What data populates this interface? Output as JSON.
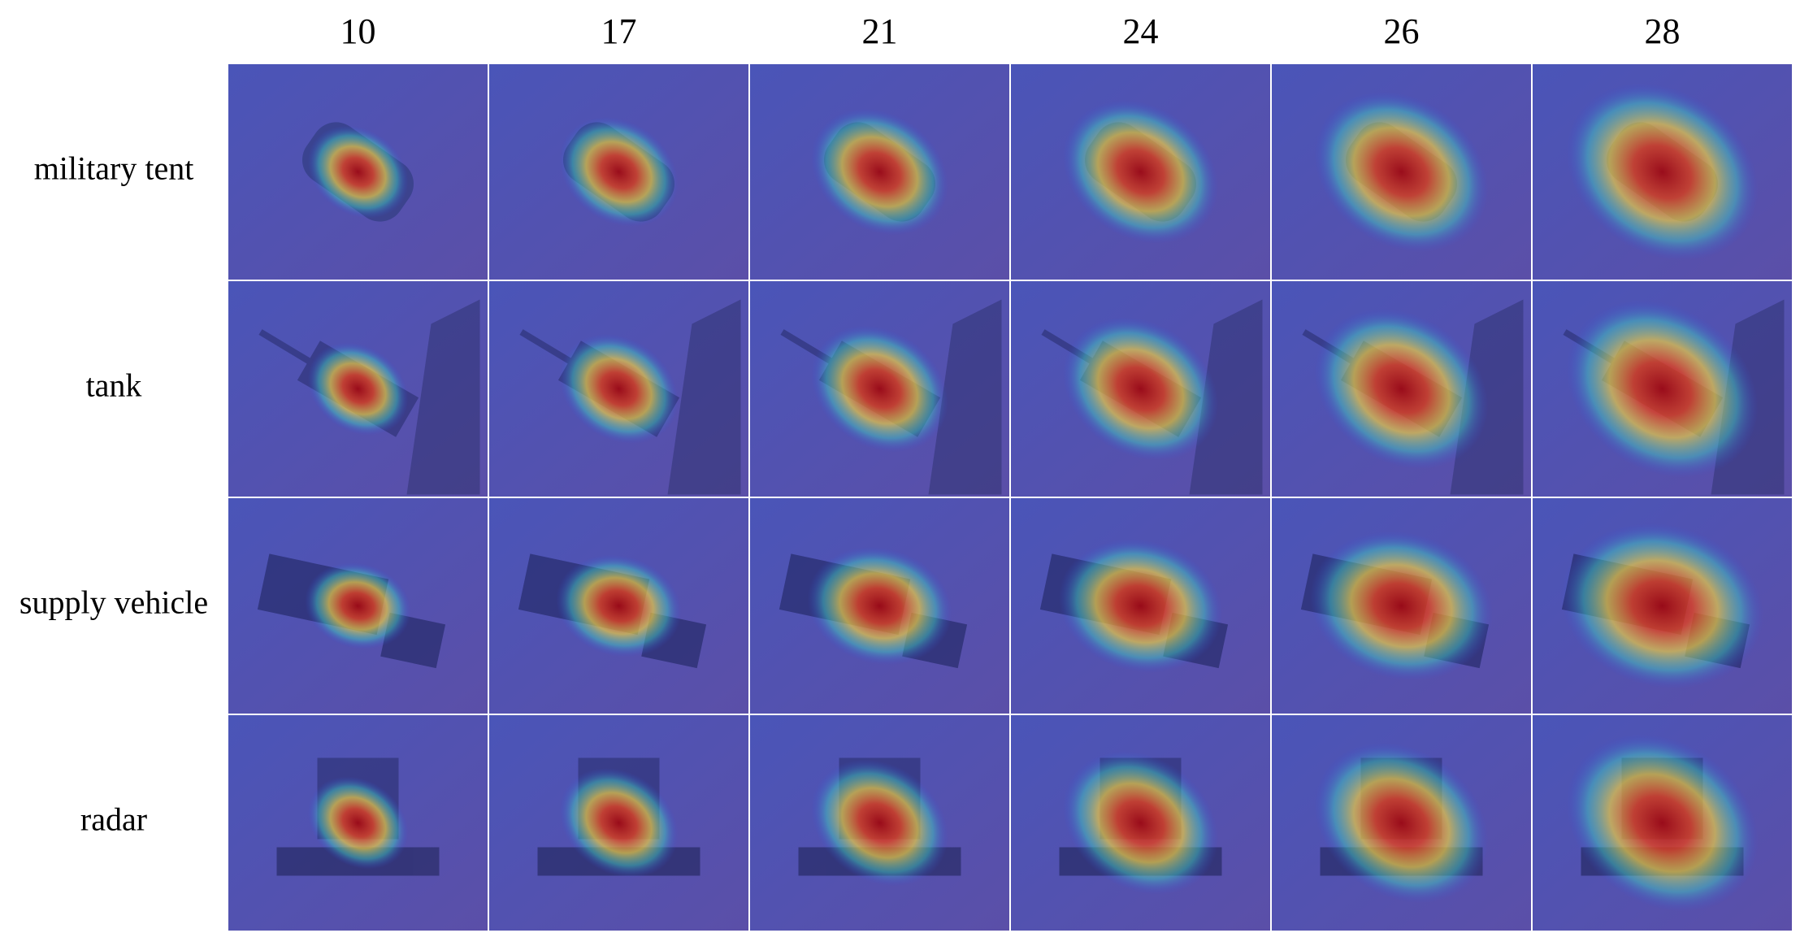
{
  "columns": [
    10,
    17,
    21,
    24,
    26,
    28
  ],
  "rows": [
    "military tent",
    "tank",
    "supply vehicle",
    "radar"
  ]
}
